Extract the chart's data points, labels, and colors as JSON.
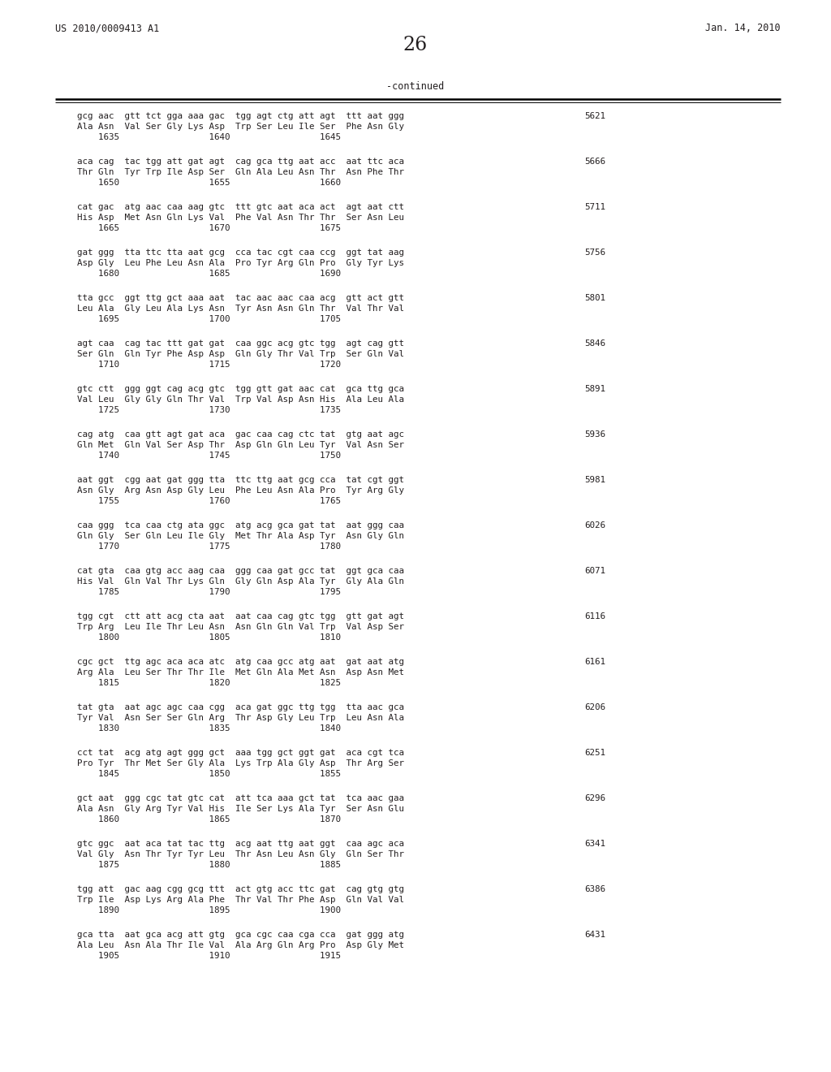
{
  "header_left": "US 2010/0009413 A1",
  "header_right": "Jan. 14, 2010",
  "page_number": "26",
  "continued_label": "-continued",
  "background_color": "#ffffff",
  "text_color": "#231f20",
  "sequence_blocks": [
    {
      "dna_display": "gcg aac  gtt tct gga aaa gac  tgg agt ctg att agt  ttt aat ggg",
      "aa": "Ala Asn  Val Ser Gly Lys Asp  Trp Ser Leu Ile Ser  Phe Asn Gly",
      "nums": "    1635                 1640                 1645",
      "num_right": "5621"
    },
    {
      "dna_display": "aca cag  tac tgg att gat agt  cag gca ttg aat acc  aat ttc aca",
      "aa": "Thr Gln  Tyr Trp Ile Asp Ser  Gln Ala Leu Asn Thr  Asn Phe Thr",
      "nums": "    1650                 1655                 1660",
      "num_right": "5666"
    },
    {
      "dna_display": "cat gac  atg aac caa aag gtc  ttt gtc aat aca act  agt aat ctt",
      "aa": "His Asp  Met Asn Gln Lys Val  Phe Val Asn Thr Thr  Ser Asn Leu",
      "nums": "    1665                 1670                 1675",
      "num_right": "5711"
    },
    {
      "dna_display": "gat ggg  tta ttc tta aat gcg  cca tac cgt caa ccg  ggt tat aag",
      "aa": "Asp Gly  Leu Phe Leu Asn Ala  Pro Tyr Arg Gln Pro  Gly Tyr Lys",
      "nums": "    1680                 1685                 1690",
      "num_right": "5756"
    },
    {
      "dna_display": "tta gcc  ggt ttg gct aaa aat  tac aac aac caa acg  gtt act gtt",
      "aa": "Leu Ala  Gly Leu Ala Lys Asn  Tyr Asn Asn Gln Thr  Val Thr Val",
      "nums": "    1695                 1700                 1705",
      "num_right": "5801"
    },
    {
      "dna_display": "agt caa  cag tac ttt gat gat  caa ggc acg gtc tgg  agt cag gtt",
      "aa": "Ser Gln  Gln Tyr Phe Asp Asp  Gln Gly Thr Val Trp  Ser Gln Val",
      "nums": "    1710                 1715                 1720",
      "num_right": "5846"
    },
    {
      "dna_display": "gtc ctt  ggg ggt cag acg gtc  tgg gtt gat aac cat  gca ttg gca",
      "aa": "Val Leu  Gly Gly Gln Thr Val  Trp Val Asp Asn His  Ala Leu Ala",
      "nums": "    1725                 1730                 1735",
      "num_right": "5891"
    },
    {
      "dna_display": "cag atg  caa gtt agt gat aca  gac caa cag ctc tat  gtg aat agc",
      "aa": "Gln Met  Gln Val Ser Asp Thr  Asp Gln Gln Leu Tyr  Val Asn Ser",
      "nums": "    1740                 1745                 1750",
      "num_right": "5936"
    },
    {
      "dna_display": "aat ggt  cgg aat gat ggg tta  ttc ttg aat gcg cca  tat cgt ggt",
      "aa": "Asn Gly  Arg Asn Asp Gly Leu  Phe Leu Asn Ala Pro  Tyr Arg Gly",
      "nums": "    1755                 1760                 1765",
      "num_right": "5981"
    },
    {
      "dna_display": "caa ggg  tca caa ctg ata ggc  atg acg gca gat tat  aat ggg caa",
      "aa": "Gln Gly  Ser Gln Leu Ile Gly  Met Thr Ala Asp Tyr  Asn Gly Gln",
      "nums": "    1770                 1775                 1780",
      "num_right": "6026"
    },
    {
      "dna_display": "cat gta  caa gtg acc aag caa  ggg caa gat gcc tat  ggt gca caa",
      "aa": "His Val  Gln Val Thr Lys Gln  Gly Gln Asp Ala Tyr  Gly Ala Gln",
      "nums": "    1785                 1790                 1795",
      "num_right": "6071"
    },
    {
      "dna_display": "tgg cgt  ctt att acg cta aat  aat caa cag gtc tgg  gtt gat agt",
      "aa": "Trp Arg  Leu Ile Thr Leu Asn  Asn Gln Gln Val Trp  Val Asp Ser",
      "nums": "    1800                 1805                 1810",
      "num_right": "6116"
    },
    {
      "dna_display": "cgc gct  ttg agc aca aca atc  atg caa gcc atg aat  gat aat atg",
      "aa": "Arg Ala  Leu Ser Thr Thr Ile  Met Gln Ala Met Asn  Asp Asn Met",
      "nums": "    1815                 1820                 1825",
      "num_right": "6161"
    },
    {
      "dna_display": "tat gta  aat agc agc caa cgg  aca gat ggc ttg tgg  tta aac gca",
      "aa": "Tyr Val  Asn Ser Ser Gln Arg  Thr Asp Gly Leu Trp  Leu Asn Ala",
      "nums": "    1830                 1835                 1840",
      "num_right": "6206"
    },
    {
      "dna_display": "cct tat  acg atg agt ggg gct  aaa tgg gct ggt gat  aca cgt tca",
      "aa": "Pro Tyr  Thr Met Ser Gly Ala  Lys Trp Ala Gly Asp  Thr Arg Ser",
      "nums": "    1845                 1850                 1855",
      "num_right": "6251"
    },
    {
      "dna_display": "gct aat  ggg cgc tat gtc cat  att tca aaa gct tat  tca aac gaa",
      "aa": "Ala Asn  Gly Arg Tyr Val His  Ile Ser Lys Ala Tyr  Ser Asn Glu",
      "nums": "    1860                 1865                 1870",
      "num_right": "6296"
    },
    {
      "dna_display": "gtc ggc  aat aca tat tac ttg  acg aat ttg aat ggt  caa agc aca",
      "aa": "Val Gly  Asn Thr Tyr Tyr Leu  Thr Asn Leu Asn Gly  Gln Ser Thr",
      "nums": "    1875                 1880                 1885",
      "num_right": "6341"
    },
    {
      "dna_display": "tgg att  gac aag cgg gcg ttt  act gtg acc ttc gat  cag gtg gtg",
      "aa": "Trp Ile  Asp Lys Arg Ala Phe  Thr Val Thr Phe Asp  Gln Val Val",
      "nums": "    1890                 1895                 1900",
      "num_right": "6386"
    },
    {
      "dna_display": "gca tta  aat gca acg att gtg  gca cgc caa cga cca  gat ggg atg",
      "aa": "Ala Leu  Asn Ala Thr Ile Val  Ala Arg Gln Arg Pro  Asp Gly Met",
      "nums": "    1905                 1910                 1915",
      "num_right": "6431"
    }
  ]
}
